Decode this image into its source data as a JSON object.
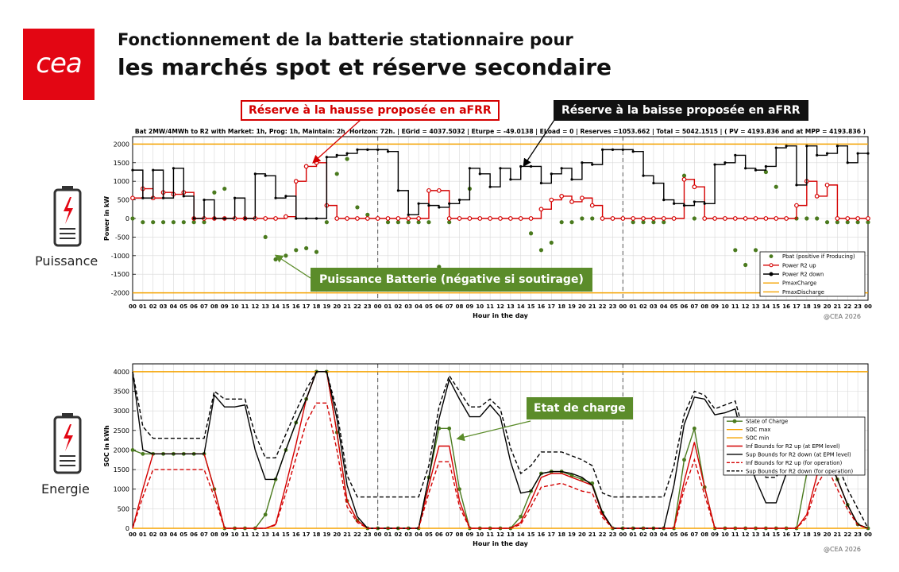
{
  "logo": {
    "text": "cea"
  },
  "title": {
    "line1": "Fonctionnement de la batterie stationnaire pour",
    "line2": "les marchés spot et réserve secondaire"
  },
  "callouts": {
    "reserve_up": "Réserve à la hausse proposée en aFRR",
    "reserve_down": "Réserve à la baisse proposée en aFRR",
    "battery_power": "Puissance Batterie (négative si soutirage)",
    "soc": "Etat de charge"
  },
  "side_labels": {
    "power": "Puissance",
    "energy": "Energie"
  },
  "copyright": "@CEA 2026",
  "colors": {
    "brand_red": "#e30613",
    "green": "#5b8c2a",
    "red": "#d40000",
    "orange": "#f5a300",
    "black": "#000000"
  },
  "chart_data": [
    {
      "type": "line",
      "title": "Bat 2MW/4MWh to R2 with Market: 1h, Prog: 1h, Maintain: 2h, Horizon: 72h. | EGrid = 4037.5032 | Eturpe = -49.0138 | ELoad = 0 | Reserves =1053.662 | Total = 5042.1515 | ( PV = 4193.836 and at MPP = 4193.836 )",
      "xlabel": "Hour in the day",
      "ylabel": "Power in kW",
      "xlim": [
        0,
        72
      ],
      "ylim": [
        -2200,
        2200
      ],
      "yticks": [
        -2000,
        -1500,
        -1000,
        -500,
        0,
        500,
        1000,
        1500,
        2000
      ],
      "xtick_labels": [
        "00",
        "01",
        "02",
        "03",
        "04",
        "05",
        "06",
        "07",
        "08",
        "09",
        "10",
        "11",
        "12",
        "13",
        "14",
        "15",
        "16",
        "17",
        "18",
        "19",
        "20",
        "21",
        "22",
        "23",
        "00",
        "01",
        "02",
        "03",
        "04",
        "05",
        "06",
        "07",
        "08",
        "09",
        "10",
        "11",
        "12",
        "13",
        "14",
        "15",
        "16",
        "17",
        "18",
        "19",
        "20",
        "21",
        "22",
        "23",
        "00",
        "01",
        "02",
        "03",
        "04",
        "05",
        "06",
        "07",
        "08",
        "09",
        "10",
        "11",
        "12",
        "13",
        "14",
        "15",
        "16",
        "17",
        "18",
        "19",
        "20",
        "21",
        "22",
        "23",
        "00"
      ],
      "day_separators": [
        24,
        48
      ],
      "grid": true,
      "legend_position": "bottom-right",
      "series": [
        {
          "name": "Pbat (positive if Producing)",
          "style": "dots",
          "color": "#4a7a1e",
          "values": [
            0,
            -100,
            -100,
            -100,
            -100,
            -100,
            -100,
            -100,
            700,
            800,
            0,
            0,
            0,
            -500,
            -1100,
            -1000,
            -850,
            -800,
            -900,
            -100,
            1200,
            1600,
            300,
            100,
            0,
            -100,
            -100,
            -100,
            -100,
            -100,
            -1300,
            -100,
            0,
            800,
            0,
            0,
            0,
            0,
            0,
            -400,
            -850,
            -650,
            -100,
            -100,
            0,
            0,
            0,
            0,
            0,
            -100,
            -100,
            -100,
            -100,
            0,
            1150,
            0,
            0,
            0,
            0,
            -850,
            -1250,
            -850,
            1250,
            850,
            0,
            0,
            0,
            0,
            -100,
            -100,
            -100,
            -100,
            -100
          ]
        },
        {
          "name": "Power R2 up",
          "style": "step-markers",
          "color": "#d40000",
          "values": [
            550,
            800,
            550,
            700,
            650,
            700,
            0,
            0,
            0,
            0,
            0,
            0,
            0,
            0,
            0,
            50,
            1000,
            1400,
            1500,
            350,
            0,
            0,
            0,
            0,
            0,
            0,
            0,
            0,
            0,
            750,
            750,
            0,
            0,
            0,
            0,
            0,
            0,
            0,
            0,
            0,
            250,
            500,
            600,
            450,
            550,
            350,
            0,
            0,
            0,
            0,
            0,
            0,
            0,
            0,
            1050,
            850,
            0,
            0,
            0,
            0,
            0,
            0,
            0,
            0,
            0,
            350,
            1000,
            600,
            900,
            0,
            0,
            0,
            0
          ]
        },
        {
          "name": "Power R2 down",
          "style": "step-markers",
          "color": "#000000",
          "values": [
            1300,
            550,
            1300,
            550,
            1350,
            600,
            0,
            500,
            0,
            0,
            550,
            0,
            1200,
            1150,
            550,
            600,
            0,
            0,
            0,
            1650,
            1700,
            1750,
            1850,
            1850,
            1850,
            1800,
            750,
            100,
            400,
            350,
            300,
            400,
            500,
            1350,
            1200,
            850,
            1350,
            1050,
            1400,
            1400,
            950,
            1200,
            1350,
            1050,
            1500,
            1450,
            1850,
            1850,
            1850,
            1800,
            1150,
            950,
            500,
            400,
            350,
            450,
            400,
            1450,
            1500,
            1700,
            1350,
            1300,
            1400,
            1900,
            1950,
            900,
            1950,
            1700,
            1750,
            1950,
            1500,
            1750,
            1750
          ]
        },
        {
          "name": "PmaxCharge",
          "style": "line",
          "color": "#f5a300",
          "values_constant": 2000
        },
        {
          "name": "PmaxDischarge",
          "style": "line",
          "color": "#f5a300",
          "values_constant": -2000
        }
      ]
    },
    {
      "type": "line",
      "xlabel": "Hour in the day",
      "ylabel": "SOC in kWh",
      "xlim": [
        0,
        72
      ],
      "ylim": [
        0,
        4200
      ],
      "yticks": [
        0,
        500,
        1000,
        1500,
        2000,
        2500,
        3000,
        3500,
        4000
      ],
      "day_separators": [
        24,
        48
      ],
      "grid": true,
      "legend_position": "top-right",
      "series": [
        {
          "name": "State of Charge",
          "style": "line-markers",
          "color": "#4a7a1e",
          "values": [
            2000,
            1900,
            1900,
            1900,
            1900,
            1900,
            1900,
            1900,
            1000,
            0,
            0,
            0,
            0,
            350,
            1250,
            2000,
            2700,
            3300,
            4000,
            4000,
            2450,
            700,
            200,
            0,
            0,
            0,
            0,
            0,
            0,
            1300,
            2550,
            2550,
            1000,
            0,
            0,
            0,
            0,
            0,
            300,
            950,
            1400,
            1450,
            1450,
            1350,
            1250,
            1150,
            400,
            0,
            0,
            0,
            0,
            0,
            0,
            0,
            1750,
            2550,
            1050,
            0,
            0,
            0,
            0,
            0,
            0,
            0,
            0,
            0,
            1400,
            2000,
            1900,
            1250,
            600,
            100,
            0
          ]
        },
        {
          "name": "SOC max",
          "style": "line",
          "color": "#f5a300",
          "values_constant": 4000
        },
        {
          "name": "SOC min",
          "style": "line",
          "color": "#f5a300",
          "values_constant": 0
        },
        {
          "name": "Inf Bounds for R2 up (at EPM level)",
          "style": "line",
          "color": "#d40000",
          "values": [
            0,
            1000,
            1900,
            1900,
            1900,
            1900,
            1900,
            1900,
            1000,
            0,
            0,
            0,
            0,
            0,
            100,
            1100,
            2150,
            3300,
            4000,
            4000,
            2450,
            700,
            200,
            0,
            0,
            0,
            0,
            0,
            0,
            1100,
            2100,
            2100,
            700,
            0,
            0,
            0,
            0,
            0,
            150,
            700,
            1300,
            1400,
            1400,
            1300,
            1200,
            1100,
            350,
            0,
            0,
            0,
            0,
            0,
            0,
            0,
            1200,
            2200,
            1050,
            0,
            0,
            0,
            0,
            0,
            0,
            0,
            0,
            0,
            350,
            1350,
            1900,
            1250,
            600,
            100,
            0
          ]
        },
        {
          "name": "Sup Bounds for R2 down (at EPM level)",
          "style": "line",
          "color": "#000000",
          "values": [
            4000,
            2000,
            1900,
            1900,
            1900,
            1900,
            1900,
            1900,
            3400,
            3100,
            3100,
            3150,
            2000,
            1250,
            1250,
            2000,
            2700,
            3300,
            4000,
            4000,
            2800,
            1100,
            300,
            0,
            0,
            0,
            0,
            0,
            0,
            1300,
            2800,
            3800,
            3300,
            2850,
            2850,
            3150,
            2850,
            1700,
            900,
            950,
            1400,
            1450,
            1450,
            1400,
            1300,
            1100,
            400,
            0,
            0,
            0,
            0,
            0,
            0,
            1100,
            2650,
            3350,
            3300,
            2900,
            2950,
            3050,
            2000,
            1250,
            650,
            650,
            1400,
            2000,
            2300,
            2000,
            1850,
            1250,
            600,
            100,
            0
          ]
        },
        {
          "name": "Inf Bounds for R2 up (for operation)",
          "style": "dashed",
          "color": "#d40000",
          "values": [
            0,
            800,
            1500,
            1500,
            1500,
            1500,
            1500,
            1500,
            800,
            0,
            0,
            0,
            0,
            0,
            80,
            900,
            1800,
            2700,
            3200,
            3200,
            2000,
            550,
            150,
            0,
            0,
            0,
            0,
            0,
            0,
            900,
            1700,
            1700,
            550,
            0,
            0,
            0,
            0,
            0,
            100,
            550,
            1050,
            1100,
            1150,
            1050,
            950,
            900,
            280,
            0,
            0,
            0,
            0,
            0,
            0,
            0,
            1000,
            1750,
            850,
            0,
            0,
            0,
            0,
            0,
            0,
            0,
            0,
            0,
            280,
            1100,
            1550,
            1000,
            480,
            80,
            0
          ]
        },
        {
          "name": "Sup Bounds for R2 down (for operation)",
          "style": "dashed",
          "color": "#000000",
          "values": [
            4000,
            2600,
            2300,
            2300,
            2300,
            2300,
            2300,
            2300,
            3500,
            3300,
            3300,
            3300,
            2400,
            1800,
            1800,
            2400,
            3000,
            3550,
            4000,
            4000,
            3000,
            1350,
            800,
            800,
            800,
            800,
            800,
            800,
            800,
            1600,
            3100,
            3900,
            3500,
            3100,
            3100,
            3300,
            3050,
            2050,
            1400,
            1600,
            1950,
            1950,
            1950,
            1850,
            1750,
            1600,
            900,
            800,
            800,
            800,
            800,
            800,
            800,
            1600,
            2900,
            3500,
            3400,
            3050,
            3150,
            3250,
            2300,
            1750,
            1300,
            1300,
            1850,
            2400,
            2650,
            2400,
            2300,
            1650,
            1000,
            500,
            0
          ]
        }
      ]
    }
  ]
}
